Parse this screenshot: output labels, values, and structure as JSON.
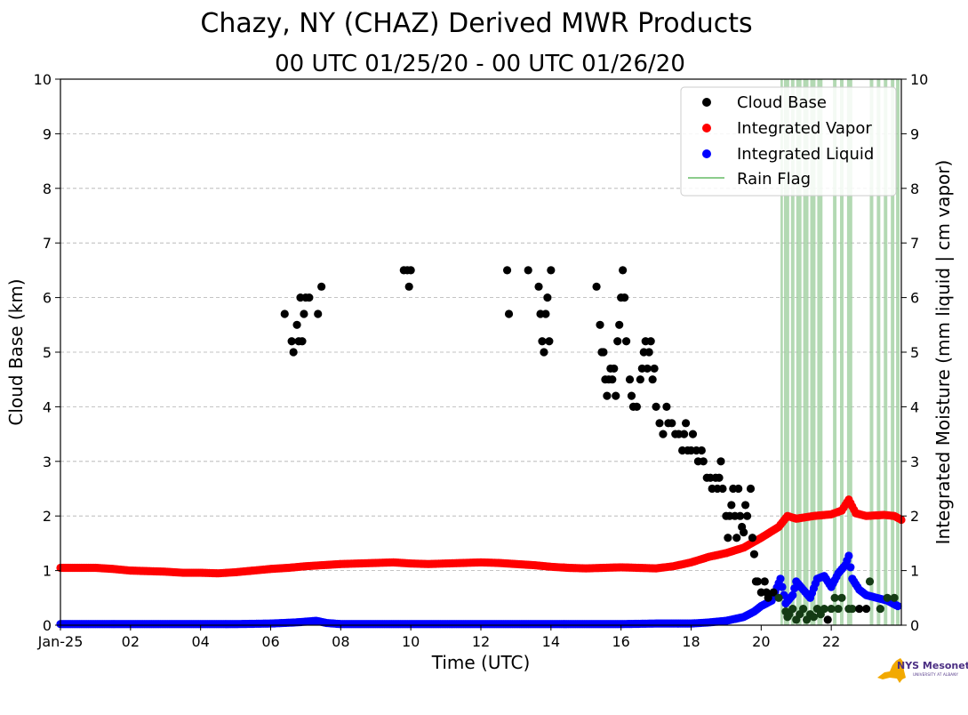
{
  "colors": {
    "cloud_base": "#000000",
    "integrated_vapor": "#ff0000",
    "integrated_liquid": "#0000ff",
    "rain_flag": "#99cc99",
    "grid": "#b0b0b0",
    "logo_state": "#f2a900",
    "logo_text": "#4b2e83"
  },
  "logo": {
    "main": "NYS Mesonet",
    "sub": "UNIVERSITY AT ALBANY"
  },
  "chart_data": {
    "type": "scatter",
    "title": "Chazy, NY (CHAZ) Derived MWR Products",
    "subtitle": "00 UTC 01/25/20 - 00 UTC 01/26/20",
    "xlabel": "Time (UTC)",
    "ylabel": "Cloud Base (km)",
    "y2label": "Integrated Moisture (mm liquid | cm vapor)",
    "xlim": [
      0,
      24
    ],
    "ylim": [
      0,
      10
    ],
    "y2lim": [
      0,
      10
    ],
    "grid": "horizontal dashed",
    "x_tick_values": [
      0,
      2,
      4,
      6,
      8,
      10,
      12,
      14,
      16,
      18,
      20,
      22
    ],
    "x_tick_labels": [
      "Jan-25",
      "02",
      "04",
      "06",
      "08",
      "10",
      "12",
      "14",
      "16",
      "18",
      "20",
      "22"
    ],
    "y_ticks": [
      "0",
      "1",
      "2",
      "3",
      "4",
      "5",
      "6",
      "7",
      "8",
      "9",
      "10"
    ],
    "legend_position": "top-right",
    "legend": [
      {
        "label": "Cloud Base",
        "marker": "dot",
        "color": "#000000"
      },
      {
        "label": "Integrated Vapor",
        "marker": "dot",
        "color": "#ff0000"
      },
      {
        "label": "Integrated Liquid",
        "marker": "dot",
        "color": "#0000ff"
      },
      {
        "label": "Rain Flag",
        "marker": "line",
        "color": "#66bb66"
      }
    ],
    "series": [
      {
        "name": "Cloud Base",
        "points": [
          [
            6.4,
            5.7
          ],
          [
            6.6,
            5.2
          ],
          [
            6.65,
            5.0
          ],
          [
            6.75,
            5.5
          ],
          [
            6.8,
            5.2
          ],
          [
            6.85,
            6.0
          ],
          [
            6.9,
            5.2
          ],
          [
            6.95,
            5.7
          ],
          [
            7.0,
            6.0
          ],
          [
            7.1,
            6.0
          ],
          [
            7.35,
            5.7
          ],
          [
            7.45,
            6.2
          ],
          [
            9.8,
            6.5
          ],
          [
            9.9,
            6.5
          ],
          [
            9.95,
            6.2
          ],
          [
            10.0,
            6.5
          ],
          [
            12.75,
            6.5
          ],
          [
            12.8,
            5.7
          ],
          [
            13.35,
            6.5
          ],
          [
            13.65,
            6.2
          ],
          [
            13.7,
            5.7
          ],
          [
            13.75,
            5.2
          ],
          [
            13.8,
            5.0
          ],
          [
            13.85,
            5.7
          ],
          [
            13.9,
            6.0
          ],
          [
            13.95,
            5.2
          ],
          [
            14.0,
            6.5
          ],
          [
            15.3,
            6.2
          ],
          [
            15.4,
            5.5
          ],
          [
            15.45,
            5.0
          ],
          [
            15.5,
            5.0
          ],
          [
            15.55,
            4.5
          ],
          [
            15.6,
            4.2
          ],
          [
            15.65,
            4.5
          ],
          [
            15.7,
            4.7
          ],
          [
            15.75,
            4.5
          ],
          [
            15.8,
            4.7
          ],
          [
            15.85,
            4.2
          ],
          [
            15.9,
            5.2
          ],
          [
            15.95,
            5.5
          ],
          [
            16.0,
            6.0
          ],
          [
            16.05,
            6.5
          ],
          [
            16.1,
            6.0
          ],
          [
            16.15,
            5.2
          ],
          [
            16.25,
            4.5
          ],
          [
            16.3,
            4.2
          ],
          [
            16.35,
            4.0
          ],
          [
            16.45,
            4.0
          ],
          [
            16.55,
            4.5
          ],
          [
            16.6,
            4.7
          ],
          [
            16.65,
            5.0
          ],
          [
            16.7,
            5.2
          ],
          [
            16.75,
            4.7
          ],
          [
            16.8,
            5.0
          ],
          [
            16.85,
            5.2
          ],
          [
            16.9,
            4.5
          ],
          [
            16.95,
            4.7
          ],
          [
            17.0,
            4.0
          ],
          [
            17.1,
            3.7
          ],
          [
            17.2,
            3.5
          ],
          [
            17.3,
            4.0
          ],
          [
            17.35,
            3.7
          ],
          [
            17.45,
            3.7
          ],
          [
            17.55,
            3.5
          ],
          [
            17.65,
            3.5
          ],
          [
            17.75,
            3.2
          ],
          [
            17.8,
            3.5
          ],
          [
            17.85,
            3.7
          ],
          [
            17.9,
            3.2
          ],
          [
            18.0,
            3.2
          ],
          [
            18.05,
            3.5
          ],
          [
            18.15,
            3.2
          ],
          [
            18.2,
            3.0
          ],
          [
            18.3,
            3.2
          ],
          [
            18.35,
            3.0
          ],
          [
            18.45,
            2.7
          ],
          [
            18.55,
            2.7
          ],
          [
            18.6,
            2.5
          ],
          [
            18.7,
            2.7
          ],
          [
            18.75,
            2.5
          ],
          [
            18.8,
            2.7
          ],
          [
            18.85,
            3.0
          ],
          [
            18.9,
            2.5
          ],
          [
            19.0,
            2.0
          ],
          [
            19.05,
            1.6
          ],
          [
            19.1,
            2.0
          ],
          [
            19.15,
            2.2
          ],
          [
            19.2,
            2.5
          ],
          [
            19.25,
            2.0
          ],
          [
            19.3,
            1.6
          ],
          [
            19.35,
            2.5
          ],
          [
            19.4,
            2.0
          ],
          [
            19.45,
            1.8
          ],
          [
            19.5,
            1.7
          ],
          [
            19.55,
            2.2
          ],
          [
            19.6,
            2.0
          ],
          [
            19.7,
            2.5
          ],
          [
            19.75,
            1.6
          ],
          [
            19.8,
            1.3
          ],
          [
            19.85,
            0.8
          ],
          [
            19.9,
            0.8
          ],
          [
            20.0,
            0.6
          ],
          [
            20.1,
            0.8
          ],
          [
            20.15,
            0.6
          ],
          [
            20.2,
            0.5
          ],
          [
            20.35,
            0.6
          ],
          [
            20.5,
            0.5
          ],
          [
            20.7,
            0.25
          ],
          [
            20.75,
            0.15
          ],
          [
            20.8,
            0.2
          ],
          [
            20.9,
            0.3
          ],
          [
            21.0,
            0.1
          ],
          [
            21.1,
            0.2
          ],
          [
            21.2,
            0.3
          ],
          [
            21.3,
            0.1
          ],
          [
            21.4,
            0.2
          ],
          [
            21.5,
            0.15
          ],
          [
            21.6,
            0.3
          ],
          [
            21.7,
            0.2
          ],
          [
            21.8,
            0.3
          ],
          [
            21.9,
            0.1
          ],
          [
            22.0,
            0.3
          ],
          [
            22.1,
            0.5
          ],
          [
            22.2,
            0.3
          ],
          [
            22.3,
            0.5
          ],
          [
            22.5,
            0.3
          ],
          [
            22.6,
            0.3
          ],
          [
            22.8,
            0.3
          ],
          [
            23.0,
            0.3
          ],
          [
            23.1,
            0.8
          ],
          [
            23.4,
            0.3
          ],
          [
            23.6,
            0.5
          ],
          [
            23.8,
            0.5
          ]
        ]
      },
      {
        "name": "Integrated Vapor",
        "points": [
          [
            0,
            1.05
          ],
          [
            0.5,
            1.05
          ],
          [
            1,
            1.05
          ],
          [
            1.5,
            1.03
          ],
          [
            2,
            1.0
          ],
          [
            2.5,
            0.99
          ],
          [
            3,
            0.98
          ],
          [
            3.5,
            0.96
          ],
          [
            4,
            0.96
          ],
          [
            4.5,
            0.95
          ],
          [
            5,
            0.97
          ],
          [
            5.5,
            1.0
          ],
          [
            6,
            1.03
          ],
          [
            6.5,
            1.05
          ],
          [
            7,
            1.08
          ],
          [
            7.5,
            1.1
          ],
          [
            8,
            1.12
          ],
          [
            8.5,
            1.13
          ],
          [
            9,
            1.14
          ],
          [
            9.5,
            1.15
          ],
          [
            10,
            1.13
          ],
          [
            10.5,
            1.12
          ],
          [
            11,
            1.13
          ],
          [
            11.5,
            1.14
          ],
          [
            12,
            1.15
          ],
          [
            12.5,
            1.14
          ],
          [
            13,
            1.12
          ],
          [
            13.5,
            1.1
          ],
          [
            14,
            1.07
          ],
          [
            14.5,
            1.05
          ],
          [
            15,
            1.04
          ],
          [
            15.5,
            1.05
          ],
          [
            16,
            1.06
          ],
          [
            16.5,
            1.05
          ],
          [
            17,
            1.04
          ],
          [
            17.5,
            1.08
          ],
          [
            18,
            1.15
          ],
          [
            18.5,
            1.25
          ],
          [
            19,
            1.32
          ],
          [
            19.5,
            1.42
          ],
          [
            20,
            1.6
          ],
          [
            20.5,
            1.8
          ],
          [
            20.75,
            2.0
          ],
          [
            21,
            1.95
          ],
          [
            21.5,
            2.0
          ],
          [
            22,
            2.03
          ],
          [
            22.3,
            2.1
          ],
          [
            22.5,
            2.3
          ],
          [
            22.7,
            2.05
          ],
          [
            23,
            2.0
          ],
          [
            23.5,
            2.02
          ],
          [
            23.8,
            2.0
          ],
          [
            24,
            1.93
          ]
        ]
      },
      {
        "name": "Integrated Liquid",
        "points": [
          [
            0,
            0.02
          ],
          [
            1,
            0.02
          ],
          [
            2,
            0.02
          ],
          [
            3,
            0.02
          ],
          [
            4,
            0.02
          ],
          [
            5,
            0.02
          ],
          [
            6,
            0.03
          ],
          [
            6.7,
            0.05
          ],
          [
            7.1,
            0.07
          ],
          [
            7.3,
            0.08
          ],
          [
            7.6,
            0.04
          ],
          [
            8,
            0.02
          ],
          [
            10,
            0.02
          ],
          [
            12,
            0.02
          ],
          [
            14,
            0.02
          ],
          [
            16,
            0.02
          ],
          [
            17,
            0.03
          ],
          [
            18,
            0.03
          ],
          [
            18.5,
            0.05
          ],
          [
            19,
            0.08
          ],
          [
            19.5,
            0.15
          ],
          [
            19.8,
            0.25
          ],
          [
            20,
            0.35
          ],
          [
            20.3,
            0.45
          ],
          [
            20.55,
            0.85
          ],
          [
            20.7,
            0.4
          ],
          [
            20.9,
            0.55
          ],
          [
            21.0,
            0.8
          ],
          [
            21.2,
            0.65
          ],
          [
            21.4,
            0.5
          ],
          [
            21.6,
            0.85
          ],
          [
            21.8,
            0.9
          ],
          [
            22.0,
            0.7
          ],
          [
            22.2,
            0.95
          ],
          [
            22.4,
            1.1
          ],
          [
            22.5,
            1.27
          ],
          [
            22.6,
            0.85
          ],
          [
            22.8,
            0.65
          ],
          [
            23.0,
            0.55
          ],
          [
            23.3,
            0.5
          ],
          [
            23.6,
            0.45
          ],
          [
            23.9,
            0.35
          ]
        ]
      }
    ],
    "rain_flag_intervals": [
      [
        20.55,
        20.62
      ],
      [
        20.65,
        20.8
      ],
      [
        20.85,
        20.95
      ],
      [
        21.0,
        21.15
      ],
      [
        21.2,
        21.35
      ],
      [
        21.4,
        21.55
      ],
      [
        21.6,
        21.75
      ],
      [
        22.05,
        22.15
      ],
      [
        22.25,
        22.35
      ],
      [
        22.45,
        22.6
      ],
      [
        23.1,
        23.2
      ],
      [
        23.3,
        23.4
      ],
      [
        23.5,
        23.6
      ],
      [
        23.7,
        23.8
      ],
      [
        23.85,
        23.95
      ]
    ]
  }
}
